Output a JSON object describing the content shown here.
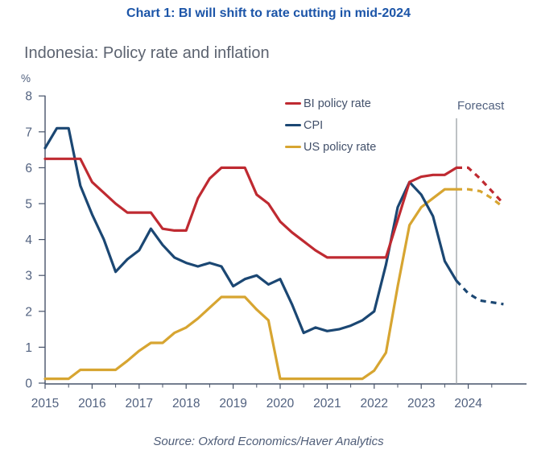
{
  "title": "Chart 1: BI will shift to rate cutting in mid-2024",
  "subtitle": "Indonesia: Policy rate and inflation",
  "unit": "%",
  "forecast_label": "Forecast",
  "source": "Source: Oxford Economics/Haver Analytics",
  "colors": {
    "title": "#1c55a8",
    "subtitle": "#5c6370",
    "axis_line": "#47536a",
    "axis_text": "#51617f",
    "legend_text": "#42506a",
    "forecast_line": "#9aa0a5",
    "source_text": "#4f5d78",
    "bi_policy_rate": "#bf2a31",
    "cpi": "#1b4773",
    "us_policy_rate": "#d7a531"
  },
  "chart_data": {
    "type": "line",
    "title": "Indonesia: Policy rate and inflation",
    "xlabel": "",
    "ylabel": "%",
    "ylim": [
      0,
      8
    ],
    "y_ticks": [
      0,
      1,
      2,
      3,
      4,
      5,
      6,
      7,
      8
    ],
    "x_years": [
      2015,
      2016,
      2017,
      2018,
      2019,
      2020,
      2021,
      2022,
      2023,
      2024
    ],
    "x_start": 2015.0,
    "x_step": 0.25,
    "xlim": [
      2015.0,
      2025.25
    ],
    "grid": false,
    "legend_position": "inside-top-center",
    "forecast_start": 2023.75,
    "forecast_start_index": 35,
    "series": [
      {
        "name": "BI policy rate",
        "key": "bi_policy_rate",
        "values": [
          6.25,
          6.25,
          6.25,
          6.25,
          5.6,
          5.3,
          5.0,
          4.75,
          4.75,
          4.75,
          4.3,
          4.25,
          4.25,
          5.15,
          5.7,
          6.0,
          6.0,
          6.0,
          5.25,
          5.0,
          4.5,
          4.2,
          3.95,
          3.7,
          3.5,
          3.5,
          3.5,
          3.5,
          3.5,
          3.5,
          4.55,
          5.6,
          5.75,
          5.8,
          5.8,
          6.0,
          6.0,
          5.7,
          5.35,
          5.0
        ]
      },
      {
        "name": "CPI",
        "key": "cpi",
        "values": [
          6.55,
          7.1,
          7.1,
          5.5,
          4.7,
          4.0,
          3.1,
          3.45,
          3.7,
          4.3,
          3.85,
          3.5,
          3.35,
          3.25,
          3.35,
          3.25,
          2.7,
          2.9,
          3.0,
          2.75,
          2.9,
          2.2,
          1.4,
          1.55,
          1.45,
          1.5,
          1.6,
          1.75,
          2.0,
          3.3,
          4.9,
          5.6,
          5.25,
          4.65,
          3.4,
          2.85,
          2.5,
          2.3,
          2.25,
          2.2
        ]
      },
      {
        "name": "US policy rate",
        "key": "us_policy_rate",
        "values": [
          0.12,
          0.12,
          0.12,
          0.37,
          0.37,
          0.37,
          0.37,
          0.62,
          0.9,
          1.12,
          1.12,
          1.4,
          1.55,
          1.8,
          2.1,
          2.4,
          2.4,
          2.4,
          2.05,
          1.75,
          0.12,
          0.12,
          0.12,
          0.12,
          0.12,
          0.12,
          0.12,
          0.12,
          0.35,
          0.85,
          2.7,
          4.4,
          4.9,
          5.15,
          5.4,
          5.4,
          5.4,
          5.35,
          5.15,
          4.9
        ]
      }
    ]
  }
}
